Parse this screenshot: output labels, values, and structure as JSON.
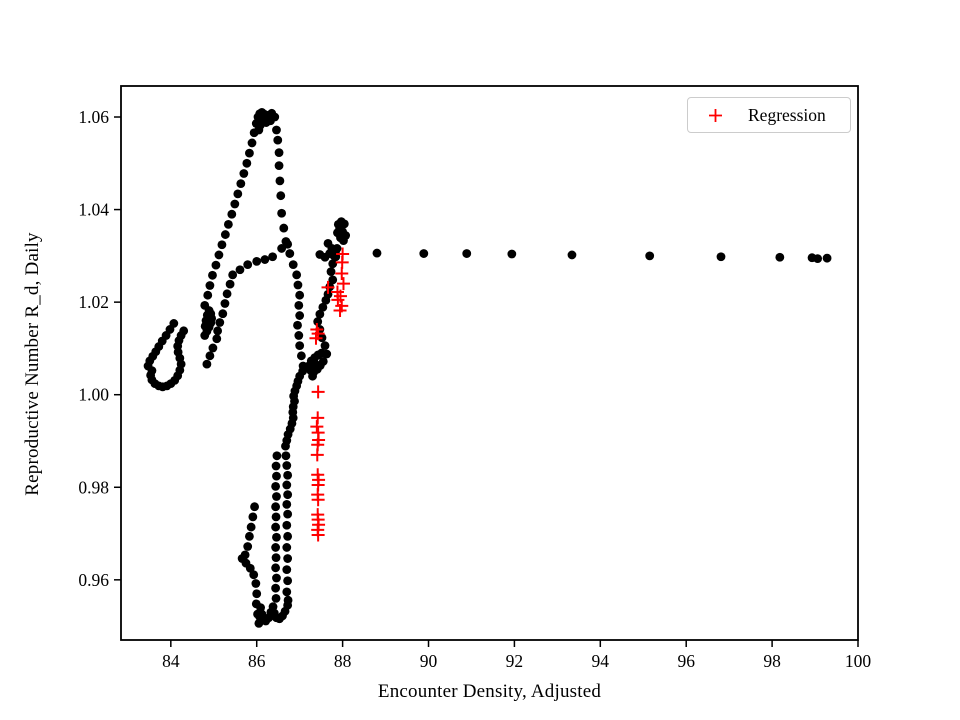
{
  "figure": {
    "background": "#ffffff"
  },
  "axes": {
    "xlabel": "Encounter Density, Adjusted",
    "ylabel": "Reproductive Number R_d, Daily",
    "xtick_labels": [
      "84",
      "86",
      "88",
      "90",
      "92",
      "94",
      "96",
      "98",
      "100"
    ],
    "ytick_labels": [
      "0.96",
      "0.98",
      "1.00",
      "1.02",
      "1.04",
      "1.06"
    ],
    "spine_color": "#000000",
    "tick_color": "#000000"
  },
  "legend": {
    "label": "Regression",
    "marker": "plus",
    "marker_color": "#ff0000",
    "border_color": "#cccccc",
    "position": "upper right"
  },
  "chart_data": {
    "type": "scatter",
    "title": "",
    "xlabel": "Encounter Density, Adjusted",
    "ylabel": "Reproductive Number R_d, Daily",
    "xlim": [
      82.84,
      100.0
    ],
    "ylim": [
      0.947,
      1.0667
    ],
    "xticks": [
      84,
      86,
      88,
      90,
      92,
      94,
      96,
      98,
      100
    ],
    "yticks": [
      0.96,
      0.98,
      1.0,
      1.02,
      1.04,
      1.06
    ],
    "grid": false,
    "legend_position": "upper right",
    "series": [
      {
        "name": "",
        "marker": "circle",
        "color": "#000000",
        "in_legend": false,
        "points": [
          [
            88.8,
            1.0306
          ],
          [
            89.89,
            1.0305
          ],
          [
            90.89,
            1.0305
          ],
          [
            91.94,
            1.0304
          ],
          [
            93.34,
            1.0302
          ],
          [
            95.15,
            1.03
          ],
          [
            96.81,
            1.0298
          ],
          [
            98.18,
            1.0297
          ],
          [
            98.93,
            1.0296
          ],
          [
            99.06,
            1.0294
          ],
          [
            99.28,
            1.0295
          ],
          [
            87.9,
            1.0368
          ],
          [
            87.97,
            1.0374
          ],
          [
            88.04,
            1.0369
          ],
          [
            87.93,
            1.0358
          ],
          [
            88.0,
            1.0352
          ],
          [
            88.07,
            1.0344
          ],
          [
            87.95,
            1.0339
          ],
          [
            88.02,
            1.0333
          ],
          [
            87.88,
            1.035
          ],
          [
            87.66,
            1.0327
          ],
          [
            87.75,
            1.0316
          ],
          [
            87.84,
            1.0311
          ],
          [
            87.7,
            1.0305
          ],
          [
            87.8,
            1.03
          ],
          [
            87.59,
            1.0297
          ],
          [
            87.47,
            1.0303
          ],
          [
            87.87,
            1.0316
          ],
          [
            87.84,
            1.0298
          ],
          [
            87.77,
            1.0283
          ],
          [
            87.73,
            1.0266
          ],
          [
            87.77,
            1.0248
          ],
          [
            87.7,
            1.0233
          ],
          [
            87.66,
            1.0217
          ],
          [
            87.61,
            1.0204
          ],
          [
            87.54,
            1.0189
          ],
          [
            87.47,
            1.0174
          ],
          [
            87.42,
            1.0158
          ],
          [
            87.47,
            1.0141
          ],
          [
            87.52,
            1.0123
          ],
          [
            87.59,
            1.0106
          ],
          [
            87.63,
            1.0088
          ],
          [
            87.55,
            1.0072
          ],
          [
            87.48,
            1.0063
          ],
          [
            87.41,
            1.0055
          ],
          [
            87.33,
            1.0049
          ],
          [
            87.26,
            1.0052
          ],
          [
            87.21,
            1.0062
          ],
          [
            87.27,
            1.0073
          ],
          [
            87.35,
            1.008
          ],
          [
            87.43,
            1.0086
          ],
          [
            87.51,
            1.009
          ],
          [
            87.37,
            1.0066
          ],
          [
            87.3,
            1.004
          ],
          [
            86.93,
            1.0259
          ],
          [
            86.96,
            1.0237
          ],
          [
            87.0,
            1.0215
          ],
          [
            86.98,
            1.0193
          ],
          [
            87.0,
            1.0171
          ],
          [
            86.95,
            1.015
          ],
          [
            86.98,
            1.0128
          ],
          [
            87.0,
            1.0106
          ],
          [
            87.04,
            1.0084
          ],
          [
            87.08,
            1.0062
          ],
          [
            87.07,
            1.0051
          ],
          [
            87.0,
            1.004
          ],
          [
            86.96,
            1.0029
          ],
          [
            86.93,
            1.0019
          ],
          [
            86.89,
            1.0008
          ],
          [
            86.86,
            0.9997
          ],
          [
            86.88,
            0.9986
          ],
          [
            86.85,
            0.9974
          ],
          [
            86.84,
            0.9962
          ],
          [
            86.85,
            0.995
          ],
          [
            86.82,
            0.9938
          ],
          [
            86.78,
            0.9926
          ],
          [
            86.73,
            0.9914
          ],
          [
            86.7,
            0.9901
          ],
          [
            86.67,
            0.9889
          ],
          [
            86.68,
            0.9868
          ],
          [
            86.7,
            0.9847
          ],
          [
            86.72,
            0.9826
          ],
          [
            86.7,
            0.9805
          ],
          [
            86.72,
            0.9784
          ],
          [
            86.7,
            0.9763
          ],
          [
            86.72,
            0.9742
          ],
          [
            86.7,
            0.9718
          ],
          [
            86.72,
            0.9694
          ],
          [
            86.7,
            0.967
          ],
          [
            86.72,
            0.9646
          ],
          [
            86.7,
            0.9622
          ],
          [
            86.72,
            0.9598
          ],
          [
            86.7,
            0.9574
          ],
          [
            86.73,
            0.9556
          ],
          [
            86.72,
            0.9545
          ],
          [
            86.66,
            0.9532
          ],
          [
            86.6,
            0.9522
          ],
          [
            86.53,
            0.9516
          ],
          [
            86.46,
            0.9518
          ],
          [
            86.41,
            0.9528
          ],
          [
            86.38,
            0.9542
          ],
          [
            86.33,
            0.953
          ],
          [
            86.28,
            0.9518
          ],
          [
            86.21,
            0.9511
          ],
          [
            86.15,
            0.9514
          ],
          [
            86.12,
            0.9526
          ],
          [
            86.09,
            0.954
          ],
          [
            86.07,
            0.952
          ],
          [
            86.47,
            0.9868
          ],
          [
            86.45,
            0.9846
          ],
          [
            86.46,
            0.9824
          ],
          [
            86.44,
            0.9802
          ],
          [
            86.46,
            0.978
          ],
          [
            86.44,
            0.9758
          ],
          [
            86.45,
            0.9736
          ],
          [
            86.44,
            0.9714
          ],
          [
            86.46,
            0.9692
          ],
          [
            86.44,
            0.967
          ],
          [
            86.45,
            0.9648
          ],
          [
            86.44,
            0.9626
          ],
          [
            86.46,
            0.9604
          ],
          [
            86.44,
            0.9582
          ],
          [
            86.45,
            0.956
          ],
          [
            85.95,
            0.9758
          ],
          [
            85.91,
            0.9736
          ],
          [
            85.87,
            0.9714
          ],
          [
            85.83,
            0.9694
          ],
          [
            85.79,
            0.9672
          ],
          [
            85.73,
            0.9654
          ],
          [
            85.66,
            0.9646
          ],
          [
            85.75,
            0.9636
          ],
          [
            85.85,
            0.9625
          ],
          [
            85.93,
            0.9611
          ],
          [
            85.98,
            0.9592
          ],
          [
            86.0,
            0.957
          ],
          [
            85.99,
            0.9548
          ],
          [
            86.02,
            0.9526
          ],
          [
            86.05,
            0.9506
          ],
          [
            83.47,
            1.0062
          ],
          [
            83.51,
            1.0073
          ],
          [
            83.58,
            1.0083
          ],
          [
            83.65,
            1.0093
          ],
          [
            83.72,
            1.0104
          ],
          [
            83.8,
            1.0116
          ],
          [
            83.89,
            1.0128
          ],
          [
            83.98,
            1.0141
          ],
          [
            84.07,
            1.0154
          ],
          [
            83.56,
            1.0052
          ],
          [
            83.53,
            1.0042
          ],
          [
            83.56,
            1.0032
          ],
          [
            83.63,
            1.0024
          ],
          [
            83.72,
            1.0019
          ],
          [
            83.81,
            1.0017
          ],
          [
            83.91,
            1.0019
          ],
          [
            84.0,
            1.0024
          ],
          [
            84.09,
            1.0031
          ],
          [
            84.16,
            1.0041
          ],
          [
            84.21,
            1.0053
          ],
          [
            84.24,
            1.0066
          ],
          [
            84.21,
            1.0079
          ],
          [
            84.17,
            1.0092
          ],
          [
            84.16,
            1.0105
          ],
          [
            84.19,
            1.0117
          ],
          [
            84.24,
            1.0128
          ],
          [
            84.3,
            1.0138
          ],
          [
            84.79,
            1.0128
          ],
          [
            84.84,
            1.0137
          ],
          [
            84.89,
            1.0146
          ],
          [
            84.93,
            1.0155
          ],
          [
            84.95,
            1.0165
          ],
          [
            84.93,
            1.0175
          ],
          [
            84.89,
            1.0182
          ],
          [
            84.85,
            1.0172
          ],
          [
            84.82,
            1.016
          ],
          [
            84.8,
            1.0148
          ],
          [
            84.86,
            1.0156
          ],
          [
            84.91,
            1.0164
          ],
          [
            84.84,
            1.0066
          ],
          [
            84.91,
            1.0084
          ],
          [
            84.98,
            1.0101
          ],
          [
            85.07,
            1.0121
          ],
          [
            85.09,
            1.0138
          ],
          [
            85.14,
            1.0156
          ],
          [
            85.21,
            1.0175
          ],
          [
            85.26,
            1.0197
          ],
          [
            85.31,
            1.0218
          ],
          [
            85.38,
            1.0239
          ],
          [
            85.44,
            1.0259
          ],
          [
            85.61,
            1.027
          ],
          [
            85.79,
            1.0281
          ],
          [
            86.0,
            1.0288
          ],
          [
            86.19,
            1.0292
          ],
          [
            86.37,
            1.0298
          ],
          [
            86.58,
            1.0316
          ],
          [
            86.72,
            1.0325
          ],
          [
            84.79,
            1.0193
          ],
          [
            84.86,
            1.0215
          ],
          [
            84.91,
            1.0236
          ],
          [
            84.97,
            1.0258
          ],
          [
            85.05,
            1.028
          ],
          [
            85.12,
            1.0302
          ],
          [
            85.19,
            1.0324
          ],
          [
            85.27,
            1.0346
          ],
          [
            85.34,
            1.0368
          ],
          [
            85.42,
            1.039
          ],
          [
            85.49,
            1.0412
          ],
          [
            85.56,
            1.0434
          ],
          [
            85.63,
            1.0456
          ],
          [
            85.7,
            1.0478
          ],
          [
            85.77,
            1.05
          ],
          [
            85.83,
            1.0522
          ],
          [
            85.89,
            1.0544
          ],
          [
            85.94,
            1.0566
          ],
          [
            85.99,
            1.0586
          ],
          [
            86.03,
            1.06
          ],
          [
            86.07,
            1.0607
          ],
          [
            86.12,
            1.061
          ],
          [
            86.18,
            1.0606
          ],
          [
            86.23,
            1.06
          ],
          [
            86.29,
            1.0604
          ],
          [
            86.35,
            1.0608
          ],
          [
            86.42,
            1.06
          ],
          [
            86.32,
            1.0592
          ],
          [
            86.22,
            1.0588
          ],
          [
            86.13,
            1.0591
          ],
          [
            86.08,
            1.0582
          ],
          [
            86.05,
            1.0572
          ],
          [
            86.46,
            1.0572
          ],
          [
            86.49,
            1.055
          ],
          [
            86.52,
            1.0523
          ],
          [
            86.52,
            1.0495
          ],
          [
            86.54,
            1.0462
          ],
          [
            86.56,
            1.043
          ],
          [
            86.58,
            1.0392
          ],
          [
            86.63,
            1.036
          ],
          [
            86.68,
            1.0331
          ],
          [
            86.77,
            1.0305
          ],
          [
            86.85,
            1.0281
          ]
        ]
      },
      {
        "name": "Regression",
        "marker": "plus",
        "color": "#ff0000",
        "in_legend": true,
        "points": [
          [
            88.0,
            1.0304
          ],
          [
            87.99,
            1.0286
          ],
          [
            87.98,
            1.0262
          ],
          [
            88.02,
            1.024
          ],
          [
            87.66,
            1.0232
          ],
          [
            87.88,
            1.0222
          ],
          [
            87.95,
            1.0213
          ],
          [
            87.89,
            1.0205
          ],
          [
            87.98,
            1.0192
          ],
          [
            87.94,
            1.0182
          ],
          [
            87.4,
            1.0141
          ],
          [
            87.43,
            1.0132
          ],
          [
            87.38,
            1.0122
          ],
          [
            87.43,
            1.0006
          ],
          [
            87.42,
            0.995
          ],
          [
            87.4,
            0.9931
          ],
          [
            87.43,
            0.9918
          ],
          [
            87.44,
            0.9902
          ],
          [
            87.42,
            0.9892
          ],
          [
            87.41,
            0.987
          ],
          [
            87.42,
            0.9827
          ],
          [
            87.44,
            0.9816
          ],
          [
            87.43,
            0.9805
          ],
          [
            87.42,
            0.9784
          ],
          [
            87.43,
            0.9773
          ],
          [
            87.42,
            0.9741
          ],
          [
            87.43,
            0.973
          ],
          [
            87.44,
            0.9719
          ],
          [
            87.42,
            0.9708
          ],
          [
            87.43,
            0.9697
          ]
        ]
      }
    ]
  }
}
